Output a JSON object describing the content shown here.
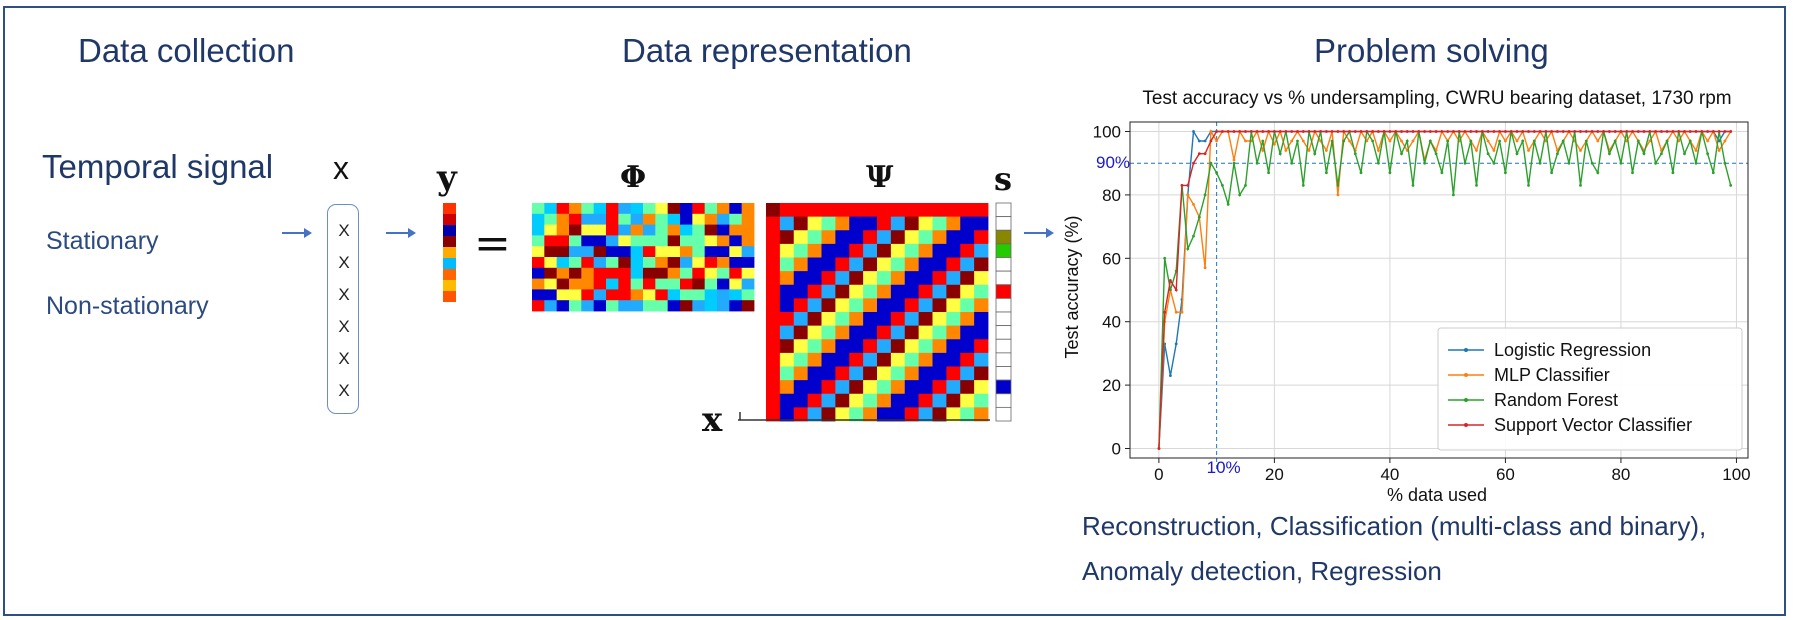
{
  "headings": {
    "collection": "Data collection",
    "representation": "Data representation",
    "solving": "Problem solving"
  },
  "collection": {
    "signal_title": "Temporal signal",
    "signal_symbol": "x",
    "types": [
      "Stationary",
      "Non-stationary"
    ],
    "vector_entries": [
      "X",
      "X",
      "X",
      "X",
      "X",
      "X"
    ]
  },
  "representation": {
    "y_label": "y",
    "equals": "=",
    "phi_label": "Φ",
    "psi_label": "Ψ",
    "s_label": "s",
    "x_label": "x"
  },
  "colors": {
    "heading": "#1f3868",
    "frame": "#2f4f7f",
    "arrow": "#4472c4",
    "annotation": "#1a1acc",
    "heatmap_palette": [
      "#ff0000",
      "#ff8800",
      "#ffff44",
      "#66ffaa",
      "#00ccff",
      "#0000cc",
      "#880000",
      "#22aaff"
    ]
  },
  "solving": {
    "tasks_line1": "Reconstruction, Classification (multi-class and binary),",
    "tasks_line2": "Anomaly detection, Regression"
  },
  "chart_data": {
    "type": "line",
    "title": "Test accuracy vs % undersampling, CWRU bearing dataset, 1730 rpm",
    "xlabel": "% data used",
    "ylabel": "Test accuracy (%)",
    "xlim": [
      -5,
      102
    ],
    "ylim": [
      -3,
      103
    ],
    "xticks": [
      0,
      20,
      40,
      60,
      80,
      100
    ],
    "yticks": [
      0,
      20,
      40,
      60,
      80,
      100
    ],
    "grid": true,
    "legend_position": "bottom-right",
    "annotations": [
      {
        "text": "90%",
        "axis": "y",
        "value": 90,
        "color": "#1a1acc"
      },
      {
        "text": "10%",
        "axis": "x",
        "value": 10,
        "color": "#1a1acc"
      }
    ],
    "x": [
      0,
      1,
      2,
      3,
      4,
      5,
      6,
      7,
      8,
      9,
      10,
      11,
      12,
      13,
      14,
      15,
      16,
      17,
      18,
      19,
      20,
      21,
      22,
      23,
      24,
      25,
      26,
      27,
      28,
      29,
      30,
      31,
      32,
      33,
      34,
      35,
      36,
      37,
      38,
      39,
      40,
      41,
      42,
      43,
      44,
      45,
      46,
      47,
      48,
      49,
      50,
      51,
      52,
      53,
      54,
      55,
      56,
      57,
      58,
      59,
      60,
      61,
      62,
      63,
      64,
      65,
      66,
      67,
      68,
      69,
      70,
      71,
      72,
      73,
      74,
      75,
      76,
      77,
      78,
      79,
      80,
      81,
      82,
      83,
      84,
      85,
      86,
      87,
      88,
      89,
      90,
      91,
      92,
      93,
      94,
      95,
      96,
      97,
      98,
      99
    ],
    "series": [
      {
        "name": "Logistic Regression",
        "color": "#1f77b4",
        "values": [
          0,
          33,
          23,
          33,
          47,
          80,
          100,
          97,
          97,
          100,
          100,
          100,
          100,
          100,
          100,
          100,
          100,
          100,
          100,
          100,
          100,
          100,
          100,
          100,
          100,
          100,
          100,
          100,
          100,
          100,
          100,
          100,
          100,
          100,
          100,
          100,
          100,
          100,
          100,
          100,
          100,
          100,
          100,
          100,
          100,
          100,
          100,
          100,
          100,
          100,
          100,
          100,
          100,
          100,
          100,
          100,
          100,
          100,
          100,
          100,
          100,
          100,
          100,
          100,
          100,
          100,
          100,
          100,
          100,
          100,
          100,
          100,
          100,
          100,
          100,
          100,
          100,
          100,
          100,
          100,
          100,
          100,
          100,
          100,
          100,
          100,
          100,
          100,
          100,
          100,
          100,
          100,
          100,
          100,
          100,
          100,
          100,
          97,
          100,
          100
        ]
      },
      {
        "name": "MLP Classifier",
        "color": "#ff7f0e",
        "values": [
          0,
          40,
          50,
          43,
          43,
          80,
          77,
          73,
          57,
          100,
          97,
          100,
          100,
          91,
          100,
          97,
          97,
          100,
          94,
          100,
          96,
          100,
          94,
          97,
          100,
          97,
          94,
          100,
          97,
          94,
          100,
          80,
          100,
          97,
          94,
          100,
          97,
          100,
          94,
          100,
          97,
          100,
          97,
          94,
          97,
          100,
          91,
          97,
          94,
          100,
          97,
          100,
          97,
          100,
          97,
          94,
          100,
          97,
          94,
          100,
          97,
          100,
          97,
          100,
          94,
          97,
          100,
          97,
          100,
          94,
          97,
          100,
          97,
          94,
          97,
          100,
          97,
          100,
          94,
          97,
          100,
          97,
          100,
          97,
          94,
          97,
          100,
          94,
          97,
          100,
          97,
          100,
          97,
          94,
          100,
          97,
          100,
          94,
          97,
          100
        ]
      },
      {
        "name": "Random Forest",
        "color": "#2ca02c",
        "values": [
          0,
          60,
          50,
          56,
          83,
          63,
          67,
          73,
          80,
          90,
          87,
          83,
          77,
          90,
          80,
          83,
          100,
          90,
          97,
          87,
          100,
          93,
          100,
          90,
          97,
          83,
          100,
          93,
          100,
          87,
          97,
          83,
          97,
          100,
          93,
          87,
          100,
          97,
          90,
          100,
          87,
          100,
          93,
          97,
          83,
          100,
          90,
          97,
          93,
          87,
          97,
          80,
          100,
          90,
          97,
          83,
          100,
          93,
          90,
          97,
          87,
          100,
          93,
          97,
          83,
          97,
          90,
          100,
          87,
          93,
          97,
          90,
          100,
          83,
          97,
          90,
          87,
          100,
          93,
          97,
          90,
          100,
          87,
          97,
          93,
          100,
          90,
          93,
          97,
          87,
          100,
          93,
          97,
          90,
          100,
          93,
          87,
          100,
          90,
          83
        ]
      },
      {
        "name": "Support Vector Classifier",
        "color": "#d62728",
        "values": [
          0,
          43,
          53,
          50,
          83,
          83,
          90,
          93,
          93,
          97,
          100,
          100,
          100,
          100,
          100,
          100,
          100,
          100,
          100,
          100,
          100,
          100,
          100,
          100,
          100,
          100,
          100,
          100,
          100,
          100,
          100,
          100,
          100,
          100,
          100,
          100,
          100,
          100,
          100,
          100,
          100,
          100,
          100,
          100,
          100,
          100,
          100,
          100,
          100,
          100,
          100,
          100,
          100,
          100,
          100,
          100,
          100,
          100,
          100,
          100,
          100,
          100,
          100,
          100,
          100,
          100,
          100,
          100,
          100,
          100,
          100,
          100,
          100,
          100,
          100,
          100,
          100,
          100,
          100,
          100,
          100,
          100,
          100,
          100,
          100,
          100,
          100,
          100,
          100,
          100,
          100,
          100,
          100,
          100,
          100,
          100,
          100,
          100,
          100,
          100
        ]
      }
    ]
  }
}
